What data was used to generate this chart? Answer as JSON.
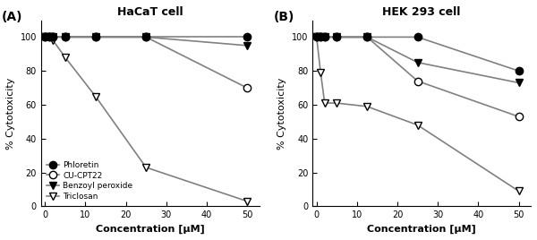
{
  "panel_A": {
    "title": "HaCaT cell",
    "label": "(A)",
    "x": [
      0,
      1,
      2,
      5,
      12.5,
      25,
      50
    ],
    "phloretin": [
      100,
      100,
      100,
      100,
      100,
      100,
      100
    ],
    "cu_cpt22": [
      100,
      100,
      100,
      100,
      100,
      100,
      70
    ],
    "benzoyl_peroxide": [
      100,
      100,
      100,
      100,
      100,
      100,
      95
    ],
    "triclosan": [
      100,
      100,
      98,
      88,
      65,
      23,
      3
    ]
  },
  "panel_B": {
    "title": "HEK 293 cell",
    "label": "(B)",
    "x": [
      0,
      1,
      2,
      5,
      12.5,
      25,
      50
    ],
    "phloretin": [
      100,
      100,
      100,
      100,
      100,
      100,
      80
    ],
    "cu_cpt22": [
      100,
      100,
      100,
      100,
      100,
      74,
      53
    ],
    "benzoyl_peroxide": [
      100,
      100,
      100,
      100,
      100,
      85,
      73
    ],
    "triclosan": [
      100,
      79,
      61,
      61,
      59,
      48,
      9
    ]
  },
  "xlabel": "Concentration [μM]",
  "ylabel": "% Cytotoxicity",
  "ylim": [
    0,
    110
  ],
  "xlim": [
    -1,
    53
  ],
  "xticks": [
    0,
    10,
    20,
    30,
    40,
    50
  ],
  "yticks": [
    0,
    20,
    40,
    60,
    80,
    100
  ],
  "legend_labels": [
    "Phloretin",
    "CU-CPT22",
    "Benzoyl peroxide",
    "Triclosan"
  ],
  "line_color": "#808080",
  "bg_color": "#ffffff"
}
